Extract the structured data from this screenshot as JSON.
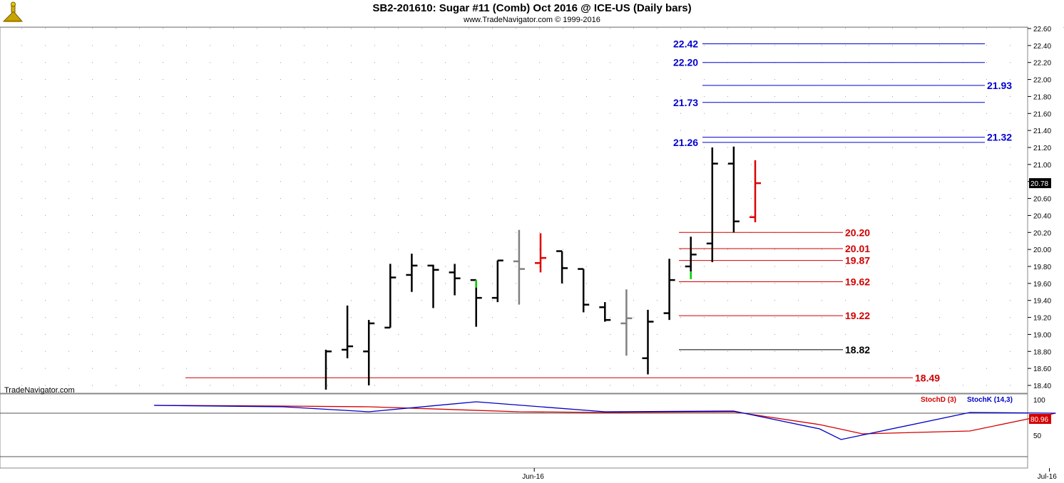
{
  "header": {
    "title": "SB2-201610:  Sugar #11 (Comb) Oct 2016 @ ICE-US  (Daily bars)",
    "subtitle": "www.TradeNavigator.com © 1999-2016"
  },
  "watermark": "TradeNavigator.com",
  "colors": {
    "bar_default": "#000000",
    "bar_gray": "#808080",
    "bar_red": "#e00000",
    "bar_green": "#00d000",
    "level_blue": "#0000d0",
    "level_red": "#d00000",
    "level_black": "#000000",
    "stoch_d": "#d40000",
    "stoch_k": "#0000c8"
  },
  "chart_data": [
    {
      "type": "ohlc",
      "title": "SB2-201610:  Sugar #11 (Comb) Oct 2016 @ ICE-US  (Daily bars)",
      "ylim": [
        18.32,
        22.65
      ],
      "y_ticks": [
        "22.60",
        "22.40",
        "22.20",
        "22.00",
        "21.80",
        "21.60",
        "21.40",
        "21.20",
        "21.00",
        "20.80",
        "20.60",
        "20.40",
        "20.20",
        "20.00",
        "19.80",
        "19.60",
        "19.40",
        "19.20",
        "19.00",
        "18.80",
        "18.60",
        "18.40"
      ],
      "x_labels": [
        {
          "label": "Jun-16",
          "bar_index": 12
        },
        {
          "label": "Jul-16",
          "bar_index": 36
        }
      ],
      "last_price": "20.78",
      "bars": [
        {
          "o": null,
          "h": 18.82,
          "l": 18.35,
          "c": 18.8,
          "color": "black"
        },
        {
          "o": 18.82,
          "h": 19.34,
          "l": 18.72,
          "c": 18.86,
          "color": "black"
        },
        {
          "o": 18.8,
          "h": 19.17,
          "l": 18.4,
          "c": 19.13,
          "color": "black"
        },
        {
          "o": 19.08,
          "h": 19.83,
          "l": 19.08,
          "c": 19.67,
          "color": "black"
        },
        {
          "o": 19.7,
          "h": 19.95,
          "l": 19.5,
          "c": 19.81,
          "color": "black"
        },
        {
          "o": 19.81,
          "h": 19.82,
          "l": 19.31,
          "c": 19.76,
          "color": "black"
        },
        {
          "o": 19.73,
          "h": 19.83,
          "l": 19.46,
          "c": 19.66,
          "color": "black"
        },
        {
          "o": 19.64,
          "h": 19.62,
          "l": 19.09,
          "c": 19.43,
          "color": "black",
          "up_tick": "green"
        },
        {
          "o": 19.43,
          "h": 19.87,
          "l": 19.38,
          "c": 19.87,
          "color": "black"
        },
        {
          "o": 19.86,
          "h": 20.23,
          "l": 19.35,
          "c": 19.77,
          "color": "gray"
        },
        {
          "o": 19.84,
          "h": 20.19,
          "l": 19.73,
          "c": 19.9,
          "color": "red"
        },
        {
          "o": 19.98,
          "h": 19.98,
          "l": 19.6,
          "c": 19.78,
          "color": "black"
        },
        {
          "o": 19.77,
          "h": 19.77,
          "l": 19.26,
          "c": 19.35,
          "color": "black"
        },
        {
          "o": 19.32,
          "h": 19.38,
          "l": 19.15,
          "c": 19.17,
          "color": "black"
        },
        {
          "o": 19.13,
          "h": 19.53,
          "l": 18.75,
          "c": 19.19,
          "color": "gray"
        },
        {
          "o": 18.72,
          "h": 19.29,
          "l": 18.53,
          "c": 19.15,
          "color": "black"
        },
        {
          "o": 19.25,
          "h": 19.89,
          "l": 19.17,
          "c": 19.64,
          "color": "black"
        },
        {
          "o": 19.8,
          "h": 20.15,
          "l": 19.74,
          "c": 19.94,
          "color": "black",
          "up_tick": "green"
        },
        {
          "o": 20.07,
          "h": 21.2,
          "l": 19.85,
          "c": 21.01,
          "color": "black"
        },
        {
          "o": 21.01,
          "h": 21.21,
          "l": 20.2,
          "c": 20.33,
          "color": "black"
        },
        {
          "o": 20.38,
          "h": 21.05,
          "l": 20.32,
          "c": 20.78,
          "color": "red"
        }
      ],
      "levels": [
        {
          "value": 22.42,
          "label": "22.42",
          "color": "blue",
          "label_side": "left"
        },
        {
          "value": 22.2,
          "label": "22.20",
          "color": "blue",
          "label_side": "left"
        },
        {
          "value": 21.93,
          "label": "21.93",
          "color": "blue",
          "label_side": "right"
        },
        {
          "value": 21.73,
          "label": "21.73",
          "color": "blue",
          "label_side": "left"
        },
        {
          "value": 21.32,
          "label": "21.32",
          "color": "blue",
          "label_side": "right"
        },
        {
          "value": 21.26,
          "label": "21.26",
          "color": "blue",
          "label_side": "left"
        },
        {
          "value": 20.2,
          "label": "20.20",
          "color": "red",
          "label_side": "right"
        },
        {
          "value": 20.01,
          "label": "20.01",
          "color": "red",
          "label_side": "right"
        },
        {
          "value": 19.87,
          "label": "19.87",
          "color": "red",
          "label_side": "right"
        },
        {
          "value": 19.62,
          "label": "19.62",
          "color": "red",
          "label_side": "right"
        },
        {
          "value": 19.22,
          "label": "19.22",
          "color": "red",
          "label_side": "right"
        },
        {
          "value": 18.82,
          "label": "18.82",
          "color": "black",
          "label_side": "right"
        },
        {
          "value": 18.49,
          "label": "18.49",
          "color": "red",
          "label_side": "right"
        }
      ]
    },
    {
      "type": "line",
      "ylim": [
        20,
        110
      ],
      "y_ticks": [
        "100",
        "50"
      ],
      "reference_line": 80,
      "last_value": "80.96",
      "series": [
        {
          "name": "StochD (3)",
          "color": "red",
          "x": [
            -8,
            -2,
            2,
            9,
            13,
            19,
            23,
            25,
            30,
            34
          ],
          "values": [
            92,
            91,
            90,
            83,
            82,
            83,
            65,
            52,
            56,
            81
          ]
        },
        {
          "name": "StochK (14,3)",
          "color": "blue",
          "x": [
            -8,
            -2,
            2,
            7,
            13,
            19,
            23,
            24,
            30,
            34
          ],
          "values": [
            92,
            90,
            83,
            97,
            83,
            84,
            59,
            44,
            82,
            81
          ]
        }
      ]
    }
  ]
}
